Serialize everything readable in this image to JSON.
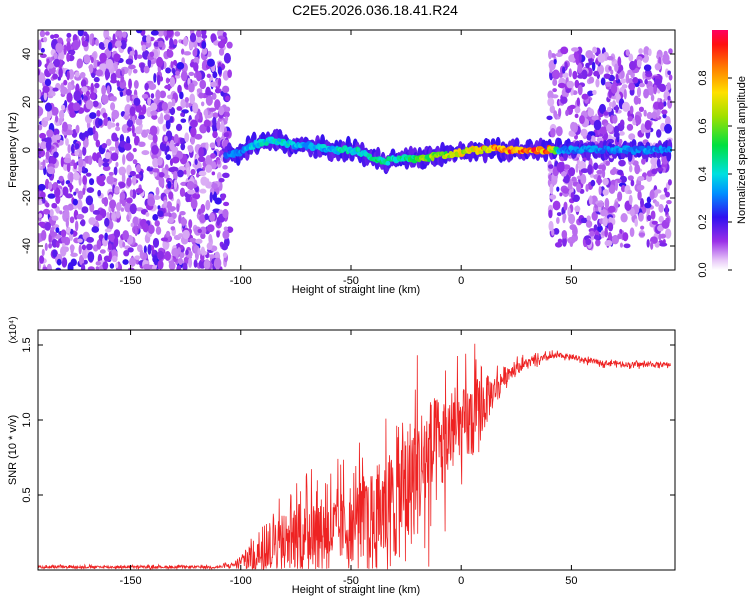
{
  "figure_title": "C2E5.2026.036.18.41.R24",
  "chart_data": [
    {
      "type": "heatmap",
      "title": "C2E5.2026.036.18.41.R24",
      "xlabel": "Height of straight line (km)",
      "ylabel": "Frequency (Hz)",
      "xlim": [
        -192,
        97
      ],
      "ylim": [
        -50,
        50
      ],
      "xticks": [
        -150,
        -100,
        -50,
        0,
        50
      ],
      "xtick_labels": [
        "-150",
        "-100",
        "-50",
        "0",
        "50"
      ],
      "yticks": [
        -40,
        -20,
        0,
        20,
        40
      ],
      "ytick_labels": [
        "-40",
        "-20",
        "0",
        "20",
        "40"
      ],
      "colorbar": {
        "label": "Normalized spectral amplitude",
        "range": [
          0,
          1
        ],
        "ticks": [
          0.0,
          0.2,
          0.4,
          0.6,
          0.8
        ],
        "tick_labels": [
          "0.0",
          "0.2",
          "0.4",
          "0.6",
          "0.8"
        ]
      },
      "regions": [
        {
          "name": "noise",
          "x_range": [
            -192,
            -105
          ],
          "freq_range": [
            -50,
            50
          ],
          "amplitude": 0.1
        },
        {
          "name": "noise",
          "x_range": [
            40,
            95
          ],
          "freq_range": [
            -40,
            42
          ],
          "amplitude": 0.1
        }
      ],
      "ridge": {
        "x": [
          -107,
          -100,
          -95,
          -90,
          -85,
          -80,
          -75,
          -70,
          -65,
          -60,
          -55,
          -50,
          -45,
          -40,
          -35,
          -30,
          -25,
          -20,
          -15,
          -10,
          -5,
          0,
          5,
          10,
          15,
          20,
          25,
          30,
          35,
          40,
          45,
          50,
          55,
          60,
          65,
          70,
          75,
          80,
          85,
          90,
          95
        ],
        "freq": [
          -2,
          -1,
          2,
          3,
          4,
          3,
          2,
          2,
          1,
          0,
          0,
          0,
          -1,
          -3,
          -5,
          -4,
          -3,
          -4,
          -3,
          -2,
          -2,
          -1,
          0,
          0,
          1,
          0,
          0,
          0,
          0,
          0,
          0,
          0,
          0,
          0,
          0,
          0,
          0,
          0,
          0,
          0,
          0
        ],
        "amplitude": [
          0.3,
          0.35,
          0.4,
          0.45,
          0.45,
          0.45,
          0.4,
          0.4,
          0.4,
          0.4,
          0.45,
          0.45,
          0.45,
          0.5,
          0.5,
          0.5,
          0.55,
          0.6,
          0.65,
          0.7,
          0.7,
          0.75,
          0.8,
          0.85,
          0.9,
          0.95,
          0.95,
          0.95,
          0.92,
          0.9,
          0.35,
          0.35,
          0.35,
          0.35,
          0.35,
          0.35,
          0.35,
          0.35,
          0.35,
          0.35,
          0.35
        ]
      }
    },
    {
      "type": "line",
      "xlabel": "Height of straight line (km)",
      "ylabel": "SNR (10 * v/v)",
      "multiplier_label": "(x10⁴)",
      "xlim": [
        -192,
        97
      ],
      "ylim": [
        0,
        1.6
      ],
      "xticks": [
        -150,
        -100,
        -50,
        0,
        50
      ],
      "xtick_labels": [
        "-150",
        "-100",
        "-50",
        "0",
        "50"
      ],
      "yticks": [
        0.5,
        1.0,
        1.5
      ],
      "ytick_labels": [
        "0.5",
        "1.0",
        "1.5"
      ],
      "series": [
        {
          "name": "SNR",
          "color": "#ee2222",
          "x": [
            -192,
            -180,
            -160,
            -140,
            -120,
            -110,
            -105,
            -100,
            -95,
            -90,
            -85,
            -80,
            -75,
            -70,
            -65,
            -60,
            -55,
            -50,
            -45,
            -40,
            -35,
            -30,
            -25,
            -20,
            -15,
            -10,
            -5,
            0,
            5,
            10,
            15,
            20,
            25,
            30,
            35,
            40,
            45,
            50,
            55,
            60,
            65,
            70,
            75,
            80,
            85,
            90,
            95
          ],
          "y": [
            0.02,
            0.02,
            0.02,
            0.02,
            0.02,
            0.02,
            0.03,
            0.05,
            0.1,
            0.15,
            0.2,
            0.2,
            0.22,
            0.22,
            0.25,
            0.25,
            0.28,
            0.3,
            0.35,
            0.35,
            0.4,
            0.45,
            0.55,
            0.65,
            0.75,
            0.8,
            0.9,
            0.95,
            1.0,
            1.1,
            1.2,
            1.3,
            1.35,
            1.38,
            1.4,
            1.42,
            1.43,
            1.42,
            1.4,
            1.39,
            1.38,
            1.38,
            1.37,
            1.37,
            1.37,
            1.37,
            1.37
          ],
          "spread": [
            0.01,
            0.01,
            0.01,
            0.01,
            0.01,
            0.01,
            0.02,
            0.04,
            0.15,
            0.2,
            0.25,
            0.25,
            0.28,
            0.28,
            0.3,
            0.3,
            0.3,
            0.32,
            0.35,
            0.4,
            0.45,
            0.5,
            0.55,
            0.55,
            0.5,
            0.45,
            0.35,
            0.3,
            0.35,
            0.25,
            0.12,
            0.08,
            0.05,
            0.04,
            0.03,
            0.03,
            0.02,
            0.02,
            0.02,
            0.02,
            0.02,
            0.02,
            0.02,
            0.02,
            0.02,
            0.02,
            0.02
          ]
        }
      ]
    }
  ]
}
